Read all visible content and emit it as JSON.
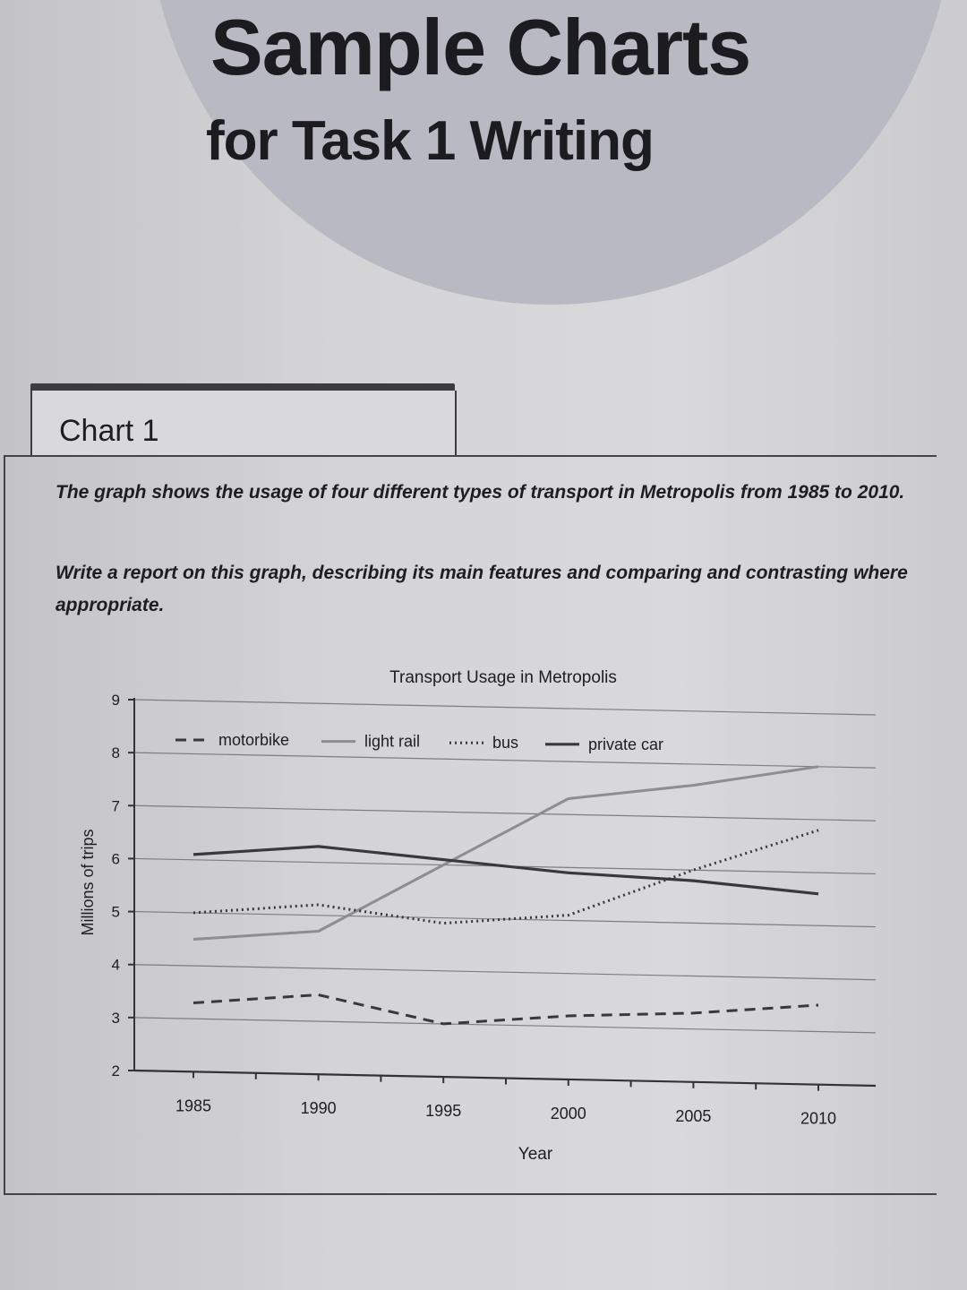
{
  "header": {
    "title": "Sample Charts",
    "subtitle": "for Task 1 Writing"
  },
  "tab": {
    "label": "Chart 1"
  },
  "prompt": {
    "description": "The graph shows the usage of four different types of transport in Metropolis from 1985 to 2010.",
    "instruction": "Write a report on this graph, describing its main features and comparing and contrasting where appropriate."
  },
  "chart_data": {
    "type": "line",
    "title": "Transport Usage in Metropolis",
    "xlabel": "Year",
    "ylabel": "Millions of trips",
    "x": [
      1985,
      1990,
      1995,
      2000,
      2005,
      2010
    ],
    "ylim": [
      2,
      9
    ],
    "yticks": [
      2,
      3,
      4,
      5,
      6,
      7,
      8,
      9
    ],
    "grid": true,
    "legend_position": "top",
    "series": [
      {
        "name": "motorbike",
        "style": "dashed",
        "values": [
          3.3,
          3.5,
          3.0,
          3.2,
          3.3,
          3.5
        ]
      },
      {
        "name": "light rail",
        "style": "solid-light",
        "values": [
          4.5,
          4.7,
          6.0,
          7.3,
          7.6,
          8.0
        ]
      },
      {
        "name": "bus",
        "style": "dotted",
        "values": [
          5.0,
          5.2,
          4.9,
          5.1,
          6.0,
          6.8
        ]
      },
      {
        "name": "private car",
        "style": "solid-dark",
        "values": [
          6.1,
          6.3,
          6.1,
          5.9,
          5.8,
          5.6
        ]
      }
    ],
    "colors": {
      "axis": "#333333",
      "grid": "#7d7d82",
      "dark_line": "#38383d",
      "light_line": "#8d8d92"
    }
  }
}
